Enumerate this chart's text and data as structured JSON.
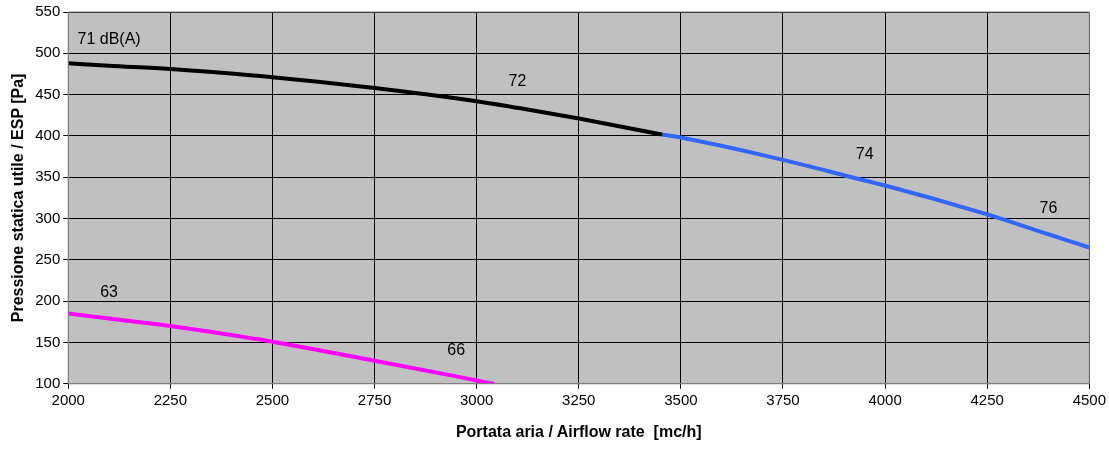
{
  "chart_data": {
    "type": "line",
    "xlabel": "Portata aria / Airflow rate  [mc/h]",
    "ylabel": "Pressione statica utile / ESP [Pa]",
    "xlim": [
      2000,
      4500
    ],
    "xticks": [
      2000,
      2250,
      2500,
      2750,
      3000,
      3250,
      3500,
      3750,
      4000,
      4250,
      4500
    ],
    "ylim": [
      100,
      550
    ],
    "yticks": [
      100,
      150,
      200,
      250,
      300,
      350,
      400,
      450,
      500,
      550
    ],
    "grid": true,
    "legend": false,
    "marker": "none",
    "line_style": "solid",
    "series": [
      {
        "color": "#000000",
        "x": [
          2000,
          2100,
          2250,
          2500,
          2750,
          3000,
          3100,
          3250,
          3450
        ],
        "values": [
          488,
          485,
          481,
          471,
          458,
          442,
          434,
          421,
          402
        ]
      },
      {
        "color": "#3366ff",
        "x": [
          3450,
          3500,
          3750,
          3950,
          4000,
          4250,
          4400,
          4500
        ],
        "values": [
          402,
          398,
          371,
          346,
          340,
          305,
          281,
          265
        ]
      },
      {
        "color": "#ff00ff",
        "x": [
          2000,
          2100,
          2250,
          2500,
          2750,
          2950,
          3000,
          3040
        ],
        "values": [
          185,
          179,
          170,
          151,
          128,
          109,
          104,
          100
        ]
      }
    ],
    "annotations": [
      {
        "text": "71 dB(A)",
        "x": 2100,
        "y": 485
      },
      {
        "text": "72",
        "x": 3100,
        "y": 434
      },
      {
        "text": "74",
        "x": 3950,
        "y": 346
      },
      {
        "text": "76",
        "x": 4400,
        "y": 281
      },
      {
        "text": "63",
        "x": 2100,
        "y": 179
      },
      {
        "text": "66",
        "x": 2950,
        "y": 109
      }
    ]
  }
}
